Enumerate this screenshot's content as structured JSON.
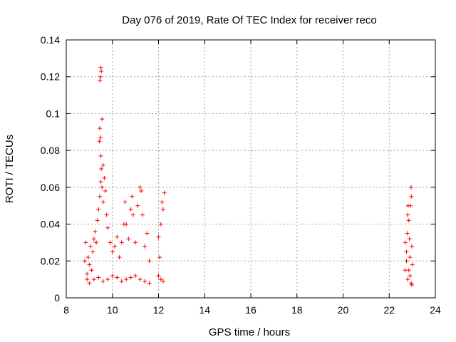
{
  "chart_data": {
    "type": "scatter",
    "title": "Day 076 of 2019, Rate Of TEC Index for receiver reco",
    "xlabel": "GPS time / hours",
    "ylabel": "ROTI / TECUs",
    "xlim": [
      8,
      24
    ],
    "ylim": [
      0,
      0.14
    ],
    "x_ticks": [
      "8",
      "10",
      "12",
      "14",
      "16",
      "18",
      "20",
      "22",
      "24"
    ],
    "y_ticks": [
      "0",
      "0.02",
      "0.04",
      "0.06",
      "0.08",
      "0.1",
      "0.12",
      "0.14"
    ],
    "grid": true,
    "marker": "+",
    "marker_color": "#ff0000",
    "series": [
      {
        "points": [
          [
            8.8,
            0.02
          ],
          [
            8.85,
            0.03
          ],
          [
            8.9,
            0.013
          ],
          [
            8.95,
            0.022
          ],
          [
            9.0,
            0.018
          ],
          [
            9.05,
            0.028
          ],
          [
            9.1,
            0.015
          ],
          [
            9.15,
            0.025
          ],
          [
            9.2,
            0.032
          ],
          [
            9.25,
            0.036
          ],
          [
            9.3,
            0.03
          ],
          [
            9.35,
            0.042
          ],
          [
            9.4,
            0.048
          ],
          [
            9.45,
            0.055
          ],
          [
            9.5,
            0.063
          ],
          [
            9.52,
            0.07
          ],
          [
            9.55,
            0.06
          ],
          [
            9.6,
            0.052
          ],
          [
            9.65,
            0.065
          ],
          [
            9.7,
            0.058
          ],
          [
            9.75,
            0.045
          ],
          [
            9.8,
            0.038
          ],
          [
            9.9,
            0.03
          ],
          [
            10.0,
            0.025
          ],
          [
            10.1,
            0.028
          ],
          [
            10.2,
            0.033
          ],
          [
            10.3,
            0.022
          ],
          [
            10.4,
            0.03
          ],
          [
            10.5,
            0.04
          ],
          [
            10.55,
            0.052
          ],
          [
            10.6,
            0.04
          ],
          [
            10.7,
            0.032
          ],
          [
            10.8,
            0.048
          ],
          [
            10.85,
            0.055
          ],
          [
            10.9,
            0.045
          ],
          [
            11.0,
            0.03
          ],
          [
            11.1,
            0.05
          ],
          [
            11.2,
            0.06
          ],
          [
            11.25,
            0.058
          ],
          [
            11.3,
            0.045
          ],
          [
            11.4,
            0.028
          ],
          [
            11.5,
            0.035
          ],
          [
            11.6,
            0.02
          ],
          [
            12.0,
            0.033
          ],
          [
            12.05,
            0.022
          ],
          [
            12.1,
            0.04
          ],
          [
            12.15,
            0.052
          ],
          [
            12.2,
            0.048
          ],
          [
            12.25,
            0.057
          ],
          [
            8.9,
            0.01
          ],
          [
            9.0,
            0.008
          ],
          [
            9.2,
            0.01
          ],
          [
            9.4,
            0.011
          ],
          [
            9.6,
            0.009
          ],
          [
            9.8,
            0.01
          ],
          [
            10.0,
            0.012
          ],
          [
            10.2,
            0.011
          ],
          [
            10.4,
            0.009
          ],
          [
            10.6,
            0.01
          ],
          [
            10.8,
            0.011
          ],
          [
            11.0,
            0.012
          ],
          [
            11.2,
            0.01
          ],
          [
            11.4,
            0.009
          ],
          [
            11.6,
            0.008
          ],
          [
            12.0,
            0.012
          ],
          [
            12.1,
            0.01
          ],
          [
            12.2,
            0.009
          ],
          [
            9.5,
            0.125
          ],
          [
            9.52,
            0.123
          ],
          [
            9.48,
            0.12
          ],
          [
            9.46,
            0.118
          ],
          [
            9.55,
            0.097
          ],
          [
            9.45,
            0.092
          ],
          [
            9.48,
            0.087
          ],
          [
            9.44,
            0.085
          ],
          [
            9.5,
            0.077
          ],
          [
            9.6,
            0.072
          ],
          [
            22.7,
            0.015
          ],
          [
            22.75,
            0.025
          ],
          [
            22.78,
            0.035
          ],
          [
            22.8,
            0.045
          ],
          [
            22.82,
            0.05
          ],
          [
            22.85,
            0.042
          ],
          [
            22.88,
            0.032
          ],
          [
            22.9,
            0.022
          ],
          [
            22.92,
            0.05
          ],
          [
            22.95,
            0.06
          ],
          [
            22.96,
            0.055
          ],
          [
            22.98,
            0.028
          ],
          [
            22.9,
            0.012
          ],
          [
            22.8,
            0.01
          ],
          [
            22.95,
            0.008
          ],
          [
            22.85,
            0.015
          ],
          [
            22.75,
            0.02
          ],
          [
            22.7,
            0.03
          ],
          [
            23.0,
            0.018
          ],
          [
            22.98,
            0.007
          ]
        ]
      }
    ]
  }
}
